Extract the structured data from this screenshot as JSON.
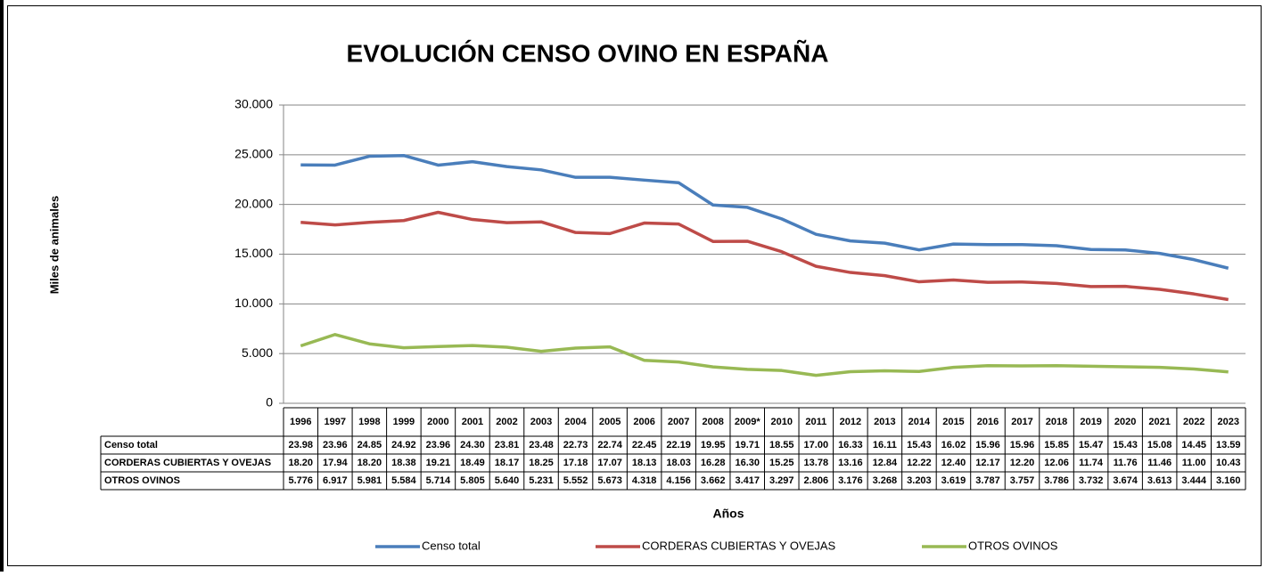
{
  "chart_data": {
    "type": "line",
    "title": "EVOLUCIÓN CENSO OVINO EN ESPAÑA",
    "y_label": "Miles de animales",
    "x_label": "Años",
    "categories": [
      "1996",
      "1997",
      "1998",
      "1999",
      "2000",
      "2001",
      "2002",
      "2003",
      "2004",
      "2005",
      "2006",
      "2007",
      "2008",
      "2009*",
      "2010",
      "2011",
      "2012",
      "2013",
      "2014",
      "2015",
      "2016",
      "2017",
      "2018",
      "2019",
      "2020",
      "2021",
      "2022",
      "2023"
    ],
    "series": [
      {
        "name": "Censo  total",
        "color": "#4a7ebb",
        "values": [
          23980,
          23960,
          24850,
          24920,
          23960,
          24300,
          23810,
          23480,
          22730,
          22740,
          22450,
          22190,
          19950,
          19710,
          18550,
          17000,
          16330,
          16110,
          15430,
          16020,
          15960,
          15960,
          15850,
          15470,
          15430,
          15080,
          14450,
          13590
        ],
        "value_labels": [
          "23.98",
          "23.96",
          "24.85",
          "24.92",
          "23.96",
          "24.30",
          "23.81",
          "23.48",
          "22.73",
          "22.74",
          "22.45",
          "22.19",
          "19.95",
          "19.71",
          "18.55",
          "17.00",
          "16.33",
          "16.11",
          "15.43",
          "16.02",
          "15.96",
          "15.96",
          "15.85",
          "15.47",
          "15.43",
          "15.08",
          "14.45",
          "13.59"
        ]
      },
      {
        "name": "CORDERAS CUBIERTAS Y OVEJAS",
        "color": "#be4b48",
        "values": [
          18200,
          17940,
          18200,
          18380,
          19210,
          18490,
          18170,
          18250,
          17180,
          17070,
          18130,
          18030,
          16280,
          16300,
          15250,
          13780,
          13160,
          12840,
          12220,
          12400,
          12170,
          12200,
          12060,
          11740,
          11760,
          11460,
          11000,
          10430
        ],
        "value_labels": [
          "18.20",
          "17.94",
          "18.20",
          "18.38",
          "19.21",
          "18.49",
          "18.17",
          "18.25",
          "17.18",
          "17.07",
          "18.13",
          "18.03",
          "16.28",
          "16.30",
          "15.25",
          "13.78",
          "13.16",
          "12.84",
          "12.22",
          "12.40",
          "12.17",
          "12.20",
          "12.06",
          "11.74",
          "11.76",
          "11.46",
          "11.00",
          "10.43"
        ]
      },
      {
        "name": "OTROS  OVINOS",
        "color": "#98b954",
        "values": [
          5776,
          6917,
          5981,
          5584,
          5714,
          5805,
          5640,
          5231,
          5552,
          5673,
          4318,
          4156,
          3662,
          3417,
          3297,
          2806,
          3176,
          3268,
          3203,
          3619,
          3787,
          3757,
          3786,
          3732,
          3674,
          3613,
          3444,
          3160
        ],
        "value_labels": [
          "5.776",
          "6.917",
          "5.981",
          "5.584",
          "5.714",
          "5.805",
          "5.640",
          "5.231",
          "5.552",
          "5.673",
          "4.318",
          "4.156",
          "3.662",
          "3.417",
          "3.297",
          "2.806",
          "3.176",
          "3.268",
          "3.203",
          "3.619",
          "3.787",
          "3.757",
          "3.786",
          "3.732",
          "3.674",
          "3.613",
          "3.444",
          "3.160"
        ]
      }
    ],
    "ylim": [
      0,
      30000
    ],
    "yticks": [
      0,
      {
        "value": 5000,
        "label": "5.000"
      },
      {
        "value": 10000,
        "label": "10.000"
      },
      {
        "value": 15000,
        "label": "15.000"
      },
      {
        "value": 20000,
        "label": "20.000"
      },
      {
        "value": 25000,
        "label": "25.000"
      },
      {
        "value": 30000,
        "label": "30.000"
      }
    ],
    "grid": true,
    "legend": "bottom"
  }
}
